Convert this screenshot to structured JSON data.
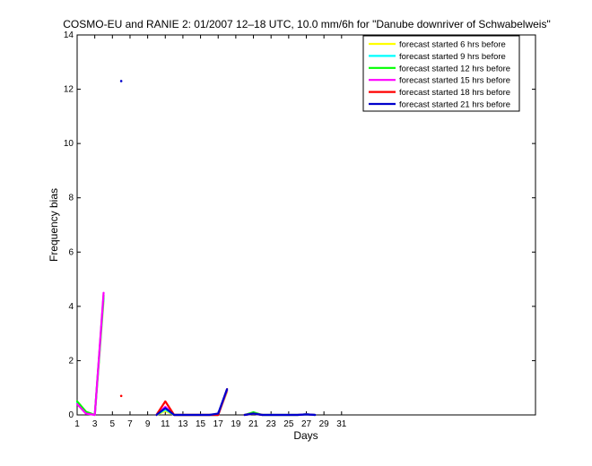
{
  "chart_data": {
    "type": "line",
    "title": "COSMO-EU and RANIE 2: 01/2007 12–18 UTC, 10.0 mm/6h for \"Danube downriver of Schwabelweis\"",
    "xlabel": "Days",
    "ylabel": "Frequency bias",
    "xlim": [
      1,
      53
    ],
    "ylim": [
      0,
      14
    ],
    "xticks": [
      1,
      3,
      5,
      7,
      9,
      11,
      13,
      15,
      17,
      19,
      21,
      23,
      25,
      27,
      29,
      31
    ],
    "yticks": [
      0,
      2,
      4,
      6,
      8,
      10,
      12,
      14
    ],
    "grid": false,
    "legend_position": "top-right",
    "series": [
      {
        "name": "forecast started 6 hrs before",
        "color": "#ffff00",
        "points": [
          [
            1,
            0.45
          ],
          [
            2,
            0.1
          ],
          [
            3,
            0
          ],
          [
            4,
            4.2
          ],
          [
            5,
            null
          ],
          [
            10,
            0
          ],
          [
            11,
            0.15
          ],
          [
            12,
            0
          ],
          [
            16,
            0
          ],
          [
            17,
            0
          ],
          [
            18,
            0.85
          ],
          [
            19,
            null
          ],
          [
            20,
            0
          ],
          [
            21,
            0.05
          ],
          [
            22,
            0
          ],
          [
            26,
            0
          ],
          [
            27,
            0.02
          ],
          [
            28,
            0
          ]
        ]
      },
      {
        "name": "forecast started 9 hrs before",
        "color": "#00ffff",
        "points": [
          [
            1,
            0.45
          ],
          [
            2,
            0.1
          ],
          [
            3,
            0
          ],
          [
            4,
            4.3
          ],
          [
            5,
            null
          ],
          [
            10,
            0
          ],
          [
            11,
            0.2
          ],
          [
            12,
            0
          ],
          [
            16,
            0
          ],
          [
            17,
            0
          ],
          [
            18,
            0.9
          ],
          [
            19,
            null
          ],
          [
            20,
            0
          ],
          [
            21,
            0.05
          ],
          [
            22,
            0
          ],
          [
            26,
            0
          ],
          [
            27,
            0.02
          ],
          [
            28,
            0
          ]
        ]
      },
      {
        "name": "forecast started 12 hrs before",
        "color": "#00ff00",
        "points": [
          [
            1,
            0.5
          ],
          [
            2,
            0.12
          ],
          [
            3,
            0
          ],
          [
            4,
            4.4
          ],
          [
            5,
            null
          ],
          [
            10,
            0
          ],
          [
            11,
            0.25
          ],
          [
            12,
            0
          ],
          [
            16,
            0
          ],
          [
            17,
            0
          ],
          [
            18,
            0.9
          ],
          [
            19,
            null
          ],
          [
            20,
            0
          ],
          [
            21,
            0.1
          ],
          [
            22,
            0
          ],
          [
            26,
            0
          ],
          [
            27,
            0.02
          ],
          [
            28,
            0
          ]
        ]
      },
      {
        "name": "forecast started 15 hrs before",
        "color": "#ff00ff",
        "points": [
          [
            1,
            0.4
          ],
          [
            2,
            0.05
          ],
          [
            3,
            0
          ],
          [
            4,
            4.5
          ],
          [
            5,
            null
          ],
          [
            10,
            0
          ],
          [
            11,
            0.3
          ],
          [
            12,
            0
          ],
          [
            16,
            0
          ],
          [
            17,
            0
          ],
          [
            18,
            0.9
          ],
          [
            19,
            null
          ],
          [
            20,
            0
          ],
          [
            21,
            0.05
          ],
          [
            22,
            0
          ],
          [
            26,
            0
          ],
          [
            27,
            0.02
          ],
          [
            28,
            0
          ]
        ]
      },
      {
        "name": "forecast started 18 hrs before",
        "color": "#ff0000",
        "points": [
          [
            6,
            0.7
          ],
          [
            7,
            null
          ],
          [
            10,
            0
          ],
          [
            11,
            0.5
          ],
          [
            12,
            0
          ],
          [
            16,
            0
          ],
          [
            17,
            0
          ],
          [
            18,
            0.95
          ],
          [
            19,
            null
          ],
          [
            20,
            0
          ],
          [
            21,
            0.05
          ],
          [
            22,
            0
          ]
        ]
      },
      {
        "name": "forecast started 21 hrs before",
        "color": "#0000cc",
        "points": [
          [
            6,
            12.3
          ],
          [
            7,
            null
          ],
          [
            10,
            0
          ],
          [
            11,
            0.25
          ],
          [
            12,
            0
          ],
          [
            16,
            0
          ],
          [
            17,
            0.05
          ],
          [
            18,
            0.95
          ],
          [
            19,
            null
          ],
          [
            20,
            0
          ],
          [
            21,
            0.05
          ],
          [
            22,
            0
          ],
          [
            26,
            0
          ],
          [
            27,
            0.02
          ],
          [
            28,
            0
          ]
        ]
      }
    ]
  }
}
